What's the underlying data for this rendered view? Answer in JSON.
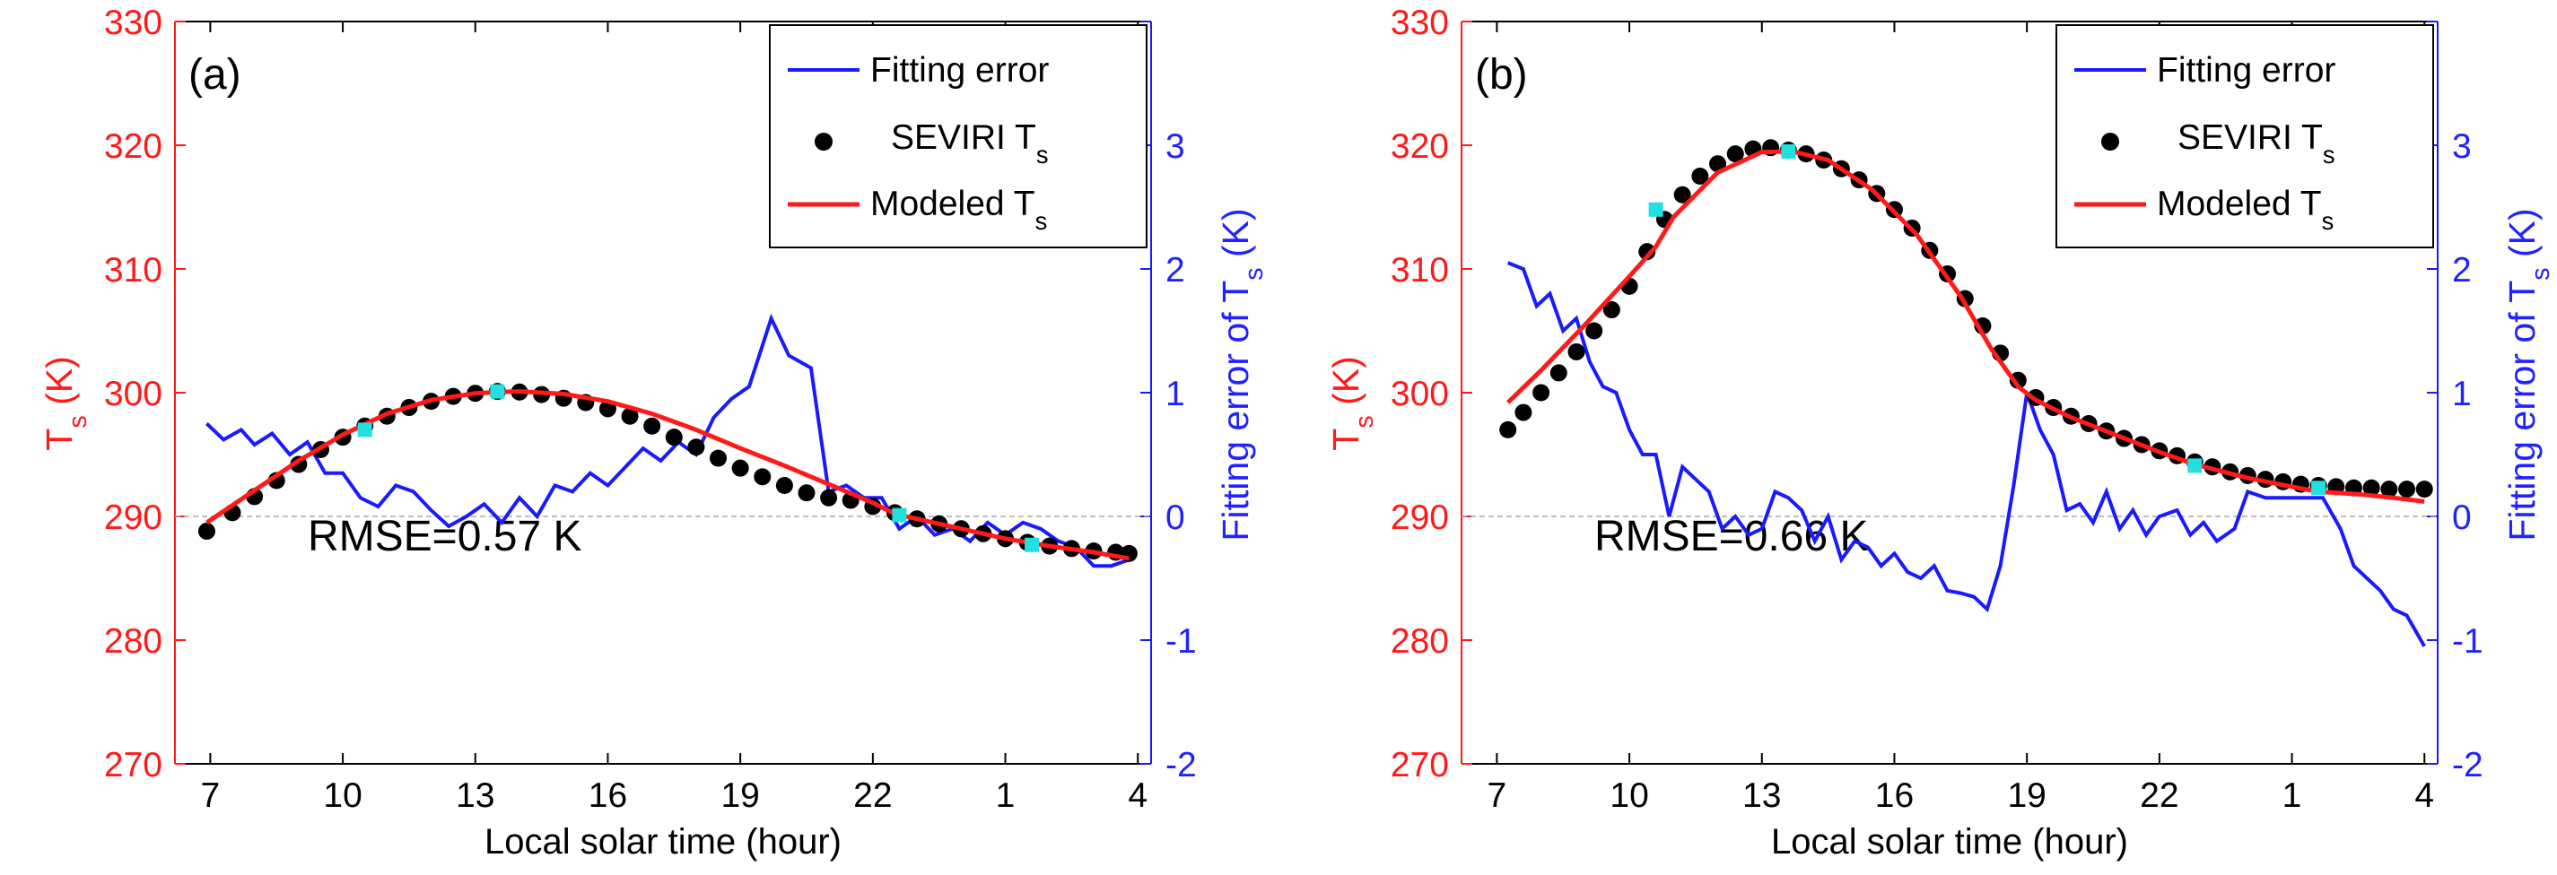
{
  "chart_data": [
    {
      "type": "line",
      "panel_label": "(a)",
      "annotation": "RMSE=0.57 K",
      "xlabel": "Local solar time (hour)",
      "ylabel_left": "T_s (K)",
      "ylabel_right": "Fitting error of T_s (K)",
      "x_ticks": [
        "7",
        "10",
        "13",
        "16",
        "19",
        "22",
        "1",
        "4"
      ],
      "x_range": [
        6.2,
        28.3
      ],
      "y_left_ticks": [
        270,
        280,
        290,
        300,
        310,
        320,
        330
      ],
      "y_left_range": [
        270,
        330
      ],
      "y_right_ticks": [
        -2,
        -1,
        0,
        1,
        2,
        3
      ],
      "y_right_range": [
        -2,
        3
      ],
      "legend": [
        "Fitting error",
        "SEVIRI T",
        "Modeled T"
      ],
      "legend_subscript": "s",
      "observed_Ts": [
        [
          6.92,
          288.8
        ],
        [
          7.5,
          290.3
        ],
        [
          8.0,
          291.6
        ],
        [
          8.5,
          292.9
        ],
        [
          9.0,
          294.2
        ],
        [
          9.5,
          295.4
        ],
        [
          10.0,
          296.4
        ],
        [
          10.5,
          297.3
        ],
        [
          11.0,
          298.1
        ],
        [
          11.5,
          298.8
        ],
        [
          12.0,
          299.3
        ],
        [
          12.5,
          299.7
        ],
        [
          13.0,
          299.95
        ],
        [
          13.5,
          300.1
        ],
        [
          14.0,
          300.05
        ],
        [
          14.5,
          299.85
        ],
        [
          15.0,
          299.55
        ],
        [
          15.5,
          299.2
        ],
        [
          16.0,
          298.7
        ],
        [
          16.5,
          298.1
        ],
        [
          17.0,
          297.3
        ],
        [
          17.5,
          296.4
        ],
        [
          18.0,
          295.6
        ],
        [
          18.5,
          294.7
        ],
        [
          19.0,
          293.9
        ],
        [
          19.5,
          293.2
        ],
        [
          20.0,
          292.5
        ],
        [
          20.5,
          291.9
        ],
        [
          21.0,
          291.5
        ],
        [
          21.5,
          291.3
        ],
        [
          22.0,
          290.8
        ],
        [
          22.5,
          290.3
        ],
        [
          23.0,
          289.8
        ],
        [
          23.5,
          289.4
        ],
        [
          24.0,
          289.0
        ],
        [
          24.5,
          288.6
        ],
        [
          25.0,
          288.2
        ],
        [
          25.5,
          287.9
        ],
        [
          26.0,
          287.6
        ],
        [
          26.5,
          287.4
        ],
        [
          27.0,
          287.2
        ],
        [
          27.5,
          287.1
        ],
        [
          27.8,
          287.0
        ]
      ],
      "modeled_Ts": [
        [
          6.92,
          289.5
        ],
        [
          8.0,
          292.1
        ],
        [
          9.0,
          294.5
        ],
        [
          10.0,
          296.6
        ],
        [
          11.0,
          298.3
        ],
        [
          12.0,
          299.4
        ],
        [
          13.0,
          299.95
        ],
        [
          13.5,
          300.05
        ],
        [
          14.0,
          300.1
        ],
        [
          15.0,
          299.9
        ],
        [
          16.0,
          299.3
        ],
        [
          17.0,
          298.3
        ],
        [
          18.0,
          297.0
        ],
        [
          19.0,
          295.5
        ],
        [
          20.0,
          294.1
        ],
        [
          21.0,
          292.6
        ],
        [
          22.0,
          291.1
        ],
        [
          22.5,
          290.2
        ],
        [
          23.0,
          289.8
        ],
        [
          24.0,
          289.0
        ],
        [
          25.0,
          288.2
        ],
        [
          26.0,
          287.6
        ],
        [
          27.0,
          287.1
        ],
        [
          27.8,
          286.6
        ]
      ],
      "fit_points": [
        [
          10.5,
          297.0
        ],
        [
          13.5,
          300.1
        ],
        [
          22.6,
          290.1
        ],
        [
          25.6,
          287.7
        ]
      ],
      "fitting_error": [
        [
          6.92,
          0.75
        ],
        [
          7.3,
          0.62
        ],
        [
          7.7,
          0.7
        ],
        [
          8.0,
          0.58
        ],
        [
          8.4,
          0.67
        ],
        [
          8.8,
          0.5
        ],
        [
          9.2,
          0.6
        ],
        [
          9.6,
          0.35
        ],
        [
          10.0,
          0.35
        ],
        [
          10.4,
          0.15
        ],
        [
          10.8,
          0.08
        ],
        [
          11.2,
          0.25
        ],
        [
          11.6,
          0.2
        ],
        [
          12.0,
          0.05
        ],
        [
          12.4,
          -0.08
        ],
        [
          12.8,
          0.0
        ],
        [
          13.2,
          0.1
        ],
        [
          13.6,
          -0.05
        ],
        [
          14.0,
          0.15
        ],
        [
          14.4,
          0.0
        ],
        [
          14.8,
          0.25
        ],
        [
          15.2,
          0.2
        ],
        [
          15.6,
          0.35
        ],
        [
          16.0,
          0.25
        ],
        [
          16.4,
          0.4
        ],
        [
          16.8,
          0.55
        ],
        [
          17.2,
          0.45
        ],
        [
          17.6,
          0.6
        ],
        [
          18.0,
          0.5
        ],
        [
          18.4,
          0.8
        ],
        [
          18.8,
          0.95
        ],
        [
          19.2,
          1.05
        ],
        [
          19.7,
          1.6
        ],
        [
          20.1,
          1.3
        ],
        [
          20.6,
          1.2
        ],
        [
          21.0,
          0.2
        ],
        [
          21.4,
          0.25
        ],
        [
          21.8,
          0.15
        ],
        [
          22.2,
          0.15
        ],
        [
          22.6,
          -0.1
        ],
        [
          23.0,
          0.0
        ],
        [
          23.4,
          -0.15
        ],
        [
          23.8,
          -0.1
        ],
        [
          24.2,
          -0.2
        ],
        [
          24.6,
          -0.05
        ],
        [
          25.0,
          -0.15
        ],
        [
          25.4,
          -0.05
        ],
        [
          25.8,
          -0.1
        ],
        [
          26.2,
          -0.2
        ],
        [
          26.6,
          -0.25
        ],
        [
          27.0,
          -0.4
        ],
        [
          27.4,
          -0.4
        ],
        [
          27.8,
          -0.35
        ]
      ]
    },
    {
      "type": "line",
      "panel_label": "(b)",
      "annotation": "RMSE=0.66 K",
      "xlabel": "Local solar time (hour)",
      "ylabel_left": "T_s (K)",
      "ylabel_right": "Fitting error of T_s (K)",
      "x_ticks": [
        "7",
        "10",
        "13",
        "16",
        "19",
        "22",
        "1",
        "4"
      ],
      "x_range": [
        6.2,
        28.3
      ],
      "y_left_ticks": [
        270,
        280,
        290,
        300,
        310,
        320,
        330
      ],
      "y_left_range": [
        270,
        330
      ],
      "y_right_ticks": [
        -2,
        -1,
        0,
        1,
        2,
        3
      ],
      "y_right_range": [
        -2,
        3
      ],
      "legend": [
        "Fitting error",
        "SEVIRI T",
        "Modeled T"
      ],
      "legend_subscript": "s",
      "observed_Ts": [
        [
          7.25,
          297.0
        ],
        [
          7.6,
          298.4
        ],
        [
          8.0,
          300.0
        ],
        [
          8.4,
          301.6
        ],
        [
          8.8,
          303.3
        ],
        [
          9.2,
          305.0
        ],
        [
          9.6,
          306.7
        ],
        [
          10.0,
          308.6
        ],
        [
          10.4,
          311.4
        ],
        [
          10.8,
          314.0
        ],
        [
          11.2,
          316.0
        ],
        [
          11.6,
          317.5
        ],
        [
          12.0,
          318.5
        ],
        [
          12.4,
          319.3
        ],
        [
          12.8,
          319.7
        ],
        [
          13.2,
          319.8
        ],
        [
          13.6,
          319.6
        ],
        [
          14.0,
          319.3
        ],
        [
          14.4,
          318.8
        ],
        [
          14.8,
          318.1
        ],
        [
          15.2,
          317.2
        ],
        [
          15.6,
          316.1
        ],
        [
          16.0,
          314.8
        ],
        [
          16.4,
          313.3
        ],
        [
          16.8,
          311.5
        ],
        [
          17.2,
          309.6
        ],
        [
          17.6,
          307.6
        ],
        [
          18.0,
          305.4
        ],
        [
          18.4,
          303.2
        ],
        [
          18.8,
          301.0
        ],
        [
          19.2,
          299.6
        ],
        [
          19.6,
          298.8
        ],
        [
          20.0,
          298.1
        ],
        [
          20.4,
          297.5
        ],
        [
          20.8,
          296.9
        ],
        [
          21.2,
          296.3
        ],
        [
          21.6,
          295.8
        ],
        [
          22.0,
          295.3
        ],
        [
          22.4,
          294.9
        ],
        [
          22.8,
          294.4
        ],
        [
          23.2,
          294.0
        ],
        [
          23.6,
          293.6
        ],
        [
          24.0,
          293.3
        ],
        [
          24.4,
          293.0
        ],
        [
          24.8,
          292.8
        ],
        [
          25.2,
          292.6
        ],
        [
          25.6,
          292.5
        ],
        [
          26.0,
          292.4
        ],
        [
          26.4,
          292.3
        ],
        [
          26.8,
          292.3
        ],
        [
          27.2,
          292.2
        ],
        [
          27.6,
          292.2
        ],
        [
          28.0,
          292.2
        ]
      ],
      "modeled_Ts": [
        [
          7.25,
          299.2
        ],
        [
          8.0,
          301.8
        ],
        [
          9.0,
          305.5
        ],
        [
          10.0,
          309.4
        ],
        [
          10.6,
          311.8
        ],
        [
          11.0,
          314.2
        ],
        [
          12.0,
          317.8
        ],
        [
          13.0,
          319.45
        ],
        [
          13.7,
          319.5
        ],
        [
          14.5,
          318.8
        ],
        [
          15.5,
          316.4
        ],
        [
          16.5,
          312.8
        ],
        [
          17.5,
          307.8
        ],
        [
          18.2,
          303.5
        ],
        [
          18.8,
          300.5
        ],
        [
          19.2,
          299.4
        ],
        [
          20.0,
          298.0
        ],
        [
          21.0,
          296.6
        ],
        [
          22.0,
          295.2
        ],
        [
          22.8,
          294.2
        ],
        [
          24.0,
          293.1
        ],
        [
          25.0,
          292.4
        ],
        [
          25.6,
          292.0
        ],
        [
          26.5,
          291.8
        ],
        [
          27.3,
          291.5
        ],
        [
          28.0,
          291.2
        ]
      ],
      "fit_points": [
        [
          10.6,
          314.8
        ],
        [
          13.6,
          319.5
        ],
        [
          22.8,
          294.1
        ],
        [
          25.6,
          292.3
        ]
      ],
      "fitting_error": [
        [
          7.25,
          2.05
        ],
        [
          7.6,
          2.0
        ],
        [
          7.9,
          1.7
        ],
        [
          8.2,
          1.8
        ],
        [
          8.5,
          1.5
        ],
        [
          8.8,
          1.6
        ],
        [
          9.1,
          1.25
        ],
        [
          9.4,
          1.05
        ],
        [
          9.7,
          1.0
        ],
        [
          10.0,
          0.7
        ],
        [
          10.3,
          0.5
        ],
        [
          10.6,
          0.5
        ],
        [
          10.9,
          0.0
        ],
        [
          11.2,
          0.4
        ],
        [
          11.5,
          0.3
        ],
        [
          11.8,
          0.2
        ],
        [
          12.1,
          -0.1
        ],
        [
          12.4,
          0.0
        ],
        [
          12.7,
          -0.15
        ],
        [
          13.0,
          -0.1
        ],
        [
          13.3,
          0.2
        ],
        [
          13.6,
          0.15
        ],
        [
          13.9,
          0.05
        ],
        [
          14.2,
          -0.2
        ],
        [
          14.5,
          0.0
        ],
        [
          14.8,
          -0.35
        ],
        [
          15.1,
          -0.2
        ],
        [
          15.4,
          -0.25
        ],
        [
          15.7,
          -0.4
        ],
        [
          16.0,
          -0.3
        ],
        [
          16.3,
          -0.45
        ],
        [
          16.6,
          -0.5
        ],
        [
          16.9,
          -0.4
        ],
        [
          17.2,
          -0.6
        ],
        [
          17.5,
          -0.62
        ],
        [
          17.8,
          -0.65
        ],
        [
          18.1,
          -0.75
        ],
        [
          18.4,
          -0.4
        ],
        [
          18.7,
          0.25
        ],
        [
          19.0,
          1.0
        ],
        [
          19.3,
          0.7
        ],
        [
          19.6,
          0.5
        ],
        [
          19.9,
          0.05
        ],
        [
          20.2,
          0.1
        ],
        [
          20.5,
          -0.05
        ],
        [
          20.8,
          0.2
        ],
        [
          21.1,
          -0.1
        ],
        [
          21.4,
          0.05
        ],
        [
          21.7,
          -0.15
        ],
        [
          22.0,
          0.0
        ],
        [
          22.4,
          0.05
        ],
        [
          22.7,
          -0.15
        ],
        [
          23.0,
          -0.05
        ],
        [
          23.3,
          -0.2
        ],
        [
          23.7,
          -0.1
        ],
        [
          24.0,
          0.2
        ],
        [
          24.4,
          0.15
        ],
        [
          25.0,
          0.15
        ],
        [
          25.7,
          0.15
        ],
        [
          26.1,
          -0.1
        ],
        [
          26.4,
          -0.4
        ],
        [
          26.7,
          -0.5
        ],
        [
          27.0,
          -0.6
        ],
        [
          27.3,
          -0.75
        ],
        [
          27.6,
          -0.8
        ],
        [
          28.0,
          -1.05
        ]
      ]
    }
  ]
}
